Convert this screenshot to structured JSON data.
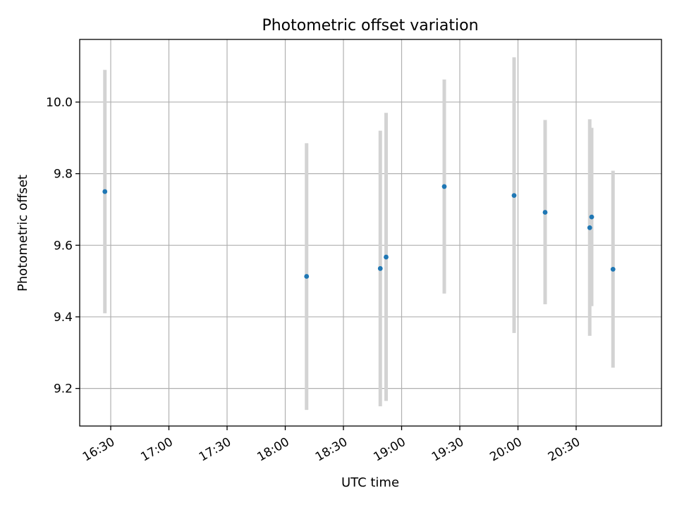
{
  "chart_data": {
    "type": "scatter",
    "title": "Photometric offset variation",
    "xlabel": "UTC time",
    "ylabel": "Photometric offset",
    "x_axis": {
      "kind": "time",
      "range": [
        "16:14",
        "21:14"
      ],
      "ticks": [
        "16:30",
        "17:00",
        "17:30",
        "18:00",
        "18:30",
        "19:00",
        "19:30",
        "20:00",
        "20:30"
      ]
    },
    "y_axis": {
      "range": [
        9.095,
        10.175
      ],
      "ticks": [
        "9.2",
        "9.4",
        "9.6",
        "9.8",
        "10.0"
      ]
    },
    "grid": true,
    "series": [
      {
        "color": "#1f77b4",
        "error_color": "#d3d3d3",
        "points": [
          {
            "x": "16:27",
            "y": 9.75,
            "y_low": 9.41,
            "y_high": 10.09
          },
          {
            "x": "18:11",
            "y": 9.513,
            "y_low": 9.14,
            "y_high": 9.885
          },
          {
            "x": "18:49",
            "y": 9.535,
            "y_low": 9.15,
            "y_high": 9.92
          },
          {
            "x": "18:52",
            "y": 9.567,
            "y_low": 9.165,
            "y_high": 9.97
          },
          {
            "x": "19:22",
            "y": 9.764,
            "y_low": 9.465,
            "y_high": 10.063
          },
          {
            "x": "19:58",
            "y": 9.739,
            "y_low": 9.355,
            "y_high": 10.125
          },
          {
            "x": "20:14",
            "y": 9.692,
            "y_low": 9.435,
            "y_high": 9.95
          },
          {
            "x": "20:37",
            "y": 9.649,
            "y_low": 9.347,
            "y_high": 9.952
          },
          {
            "x": "20:38",
            "y": 9.679,
            "y_low": 9.43,
            "y_high": 9.928
          },
          {
            "x": "20:49",
            "y": 9.533,
            "y_low": 9.258,
            "y_high": 9.808
          }
        ]
      }
    ]
  }
}
